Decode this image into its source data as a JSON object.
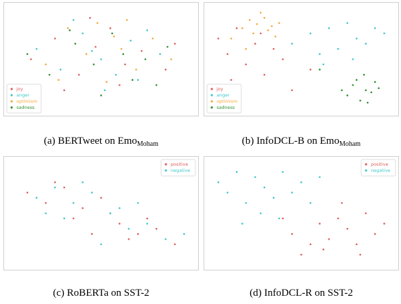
{
  "chart_data": [
    {
      "type": "scatter",
      "caption": "(a) BERTweet on Emo",
      "caption_sub": "Moham",
      "legend": "lower left",
      "xlim": [
        0,
        100
      ],
      "ylim": [
        0,
        100
      ],
      "series": [
        {
          "name": "joy",
          "color": "#dd5c5c",
          "x": [
            12,
            25,
            38,
            47,
            55,
            63,
            72,
            85,
            30,
            60,
            44,
            90
          ],
          "values": [
            50,
            70,
            35,
            62,
            80,
            45,
            58,
            40,
            20,
            25,
            90,
            65
          ]
        },
        {
          "name": "anger",
          "color": "#3ec7c9",
          "x": [
            15,
            28,
            40,
            50,
            58,
            66,
            75,
            82,
            35,
            52,
            70,
            45
          ],
          "values": [
            60,
            40,
            75,
            50,
            35,
            68,
            78,
            55,
            88,
            20,
            30,
            58
          ]
        },
        {
          "name": "optimism",
          "color": "#f2a93b",
          "x": [
            20,
            32,
            42,
            53,
            61,
            69,
            78,
            88,
            27,
            48,
            64,
            57
          ],
          "values": [
            45,
            80,
            55,
            28,
            60,
            40,
            70,
            50,
            30,
            85,
            88,
            72
          ]
        },
        {
          "name": "sadness",
          "color": "#2f8f2f",
          "x": [
            10,
            22,
            36,
            46,
            56,
            67,
            74,
            86,
            33,
            50,
            62,
            80
          ],
          "values": [
            55,
            35,
            65,
            45,
            75,
            30,
            50,
            62,
            78,
            15,
            55,
            25
          ]
        }
      ]
    },
    {
      "type": "scatter",
      "caption": "(b) InfoDCL-B on Emo",
      "caption_sub": "Moham",
      "legend": "lower left",
      "xlim": [
        0,
        100
      ],
      "ylim": [
        0,
        100
      ],
      "series": [
        {
          "name": "joy",
          "color": "#dd5c5c",
          "x": [
            5,
            10,
            15,
            20,
            25,
            30,
            35,
            40,
            12,
            28,
            45,
            55
          ],
          "values": [
            70,
            55,
            80,
            45,
            65,
            35,
            60,
            50,
            30,
            75,
            20,
            40
          ]
        },
        {
          "name": "anger",
          "color": "#3ec7c9",
          "x": [
            45,
            55,
            60,
            65,
            70,
            75,
            80,
            85,
            90,
            95,
            62,
            78
          ],
          "values": [
            65,
            75,
            55,
            80,
            60,
            85,
            70,
            65,
            80,
            75,
            45,
            50
          ]
        },
        {
          "name": "optimism",
          "color": "#f2a93b",
          "x": [
            18,
            22,
            26,
            30,
            34,
            24,
            28,
            32,
            12,
            38,
            20,
            36
          ],
          "values": [
            80,
            88,
            84,
            90,
            82,
            75,
            95,
            78,
            70,
            85,
            60,
            72
          ]
        },
        {
          "name": "sadness",
          "color": "#2f8f2f",
          "x": [
            75,
            78,
            82,
            85,
            88,
            92,
            80,
            86,
            90,
            72,
            84,
            60
          ],
          "values": [
            15,
            25,
            10,
            20,
            18,
            22,
            30,
            8,
            28,
            20,
            35,
            40
          ]
        }
      ]
    },
    {
      "type": "scatter",
      "caption": "(c) RoBERTa on SST-2",
      "legend": "upper right",
      "xlim": [
        0,
        100
      ],
      "ylim": [
        0,
        100
      ],
      "series": [
        {
          "name": "positive",
          "color": "#dd5c5c",
          "x": [
            10,
            20,
            30,
            40,
            50,
            60,
            70,
            80,
            90,
            35,
            65,
            55,
            25,
            45,
            75
          ],
          "values": [
            70,
            60,
            75,
            55,
            65,
            40,
            30,
            35,
            20,
            45,
            25,
            50,
            80,
            30,
            45
          ]
        },
        {
          "name": "negative",
          "color": "#3ec7c9",
          "x": [
            15,
            25,
            35,
            45,
            55,
            65,
            75,
            85,
            95,
            40,
            60,
            30,
            50,
            70,
            20
          ],
          "values": [
            65,
            75,
            60,
            70,
            50,
            35,
            40,
            25,
            30,
            80,
            55,
            45,
            20,
            60,
            50
          ]
        }
      ]
    },
    {
      "type": "scatter",
      "caption": "(d) InfoDCL-R on SST-2",
      "legend": "upper right",
      "xlim": [
        0,
        100
      ],
      "ylim": [
        0,
        100
      ],
      "series": [
        {
          "name": "positive",
          "color": "#dd5c5c",
          "x": [
            45,
            55,
            60,
            65,
            70,
            75,
            80,
            85,
            90,
            95,
            50,
            62,
            72,
            82,
            40
          ],
          "values": [
            30,
            20,
            40,
            25,
            45,
            35,
            20,
            50,
            30,
            40,
            10,
            15,
            60,
            10,
            45
          ]
        },
        {
          "name": "negative",
          "color": "#3ec7c9",
          "x": [
            5,
            10,
            15,
            20,
            25,
            30,
            35,
            40,
            45,
            50,
            55,
            18,
            28,
            38,
            60
          ],
          "values": [
            80,
            70,
            90,
            60,
            85,
            75,
            65,
            90,
            70,
            80,
            60,
            40,
            50,
            45,
            85
          ]
        }
      ]
    }
  ]
}
